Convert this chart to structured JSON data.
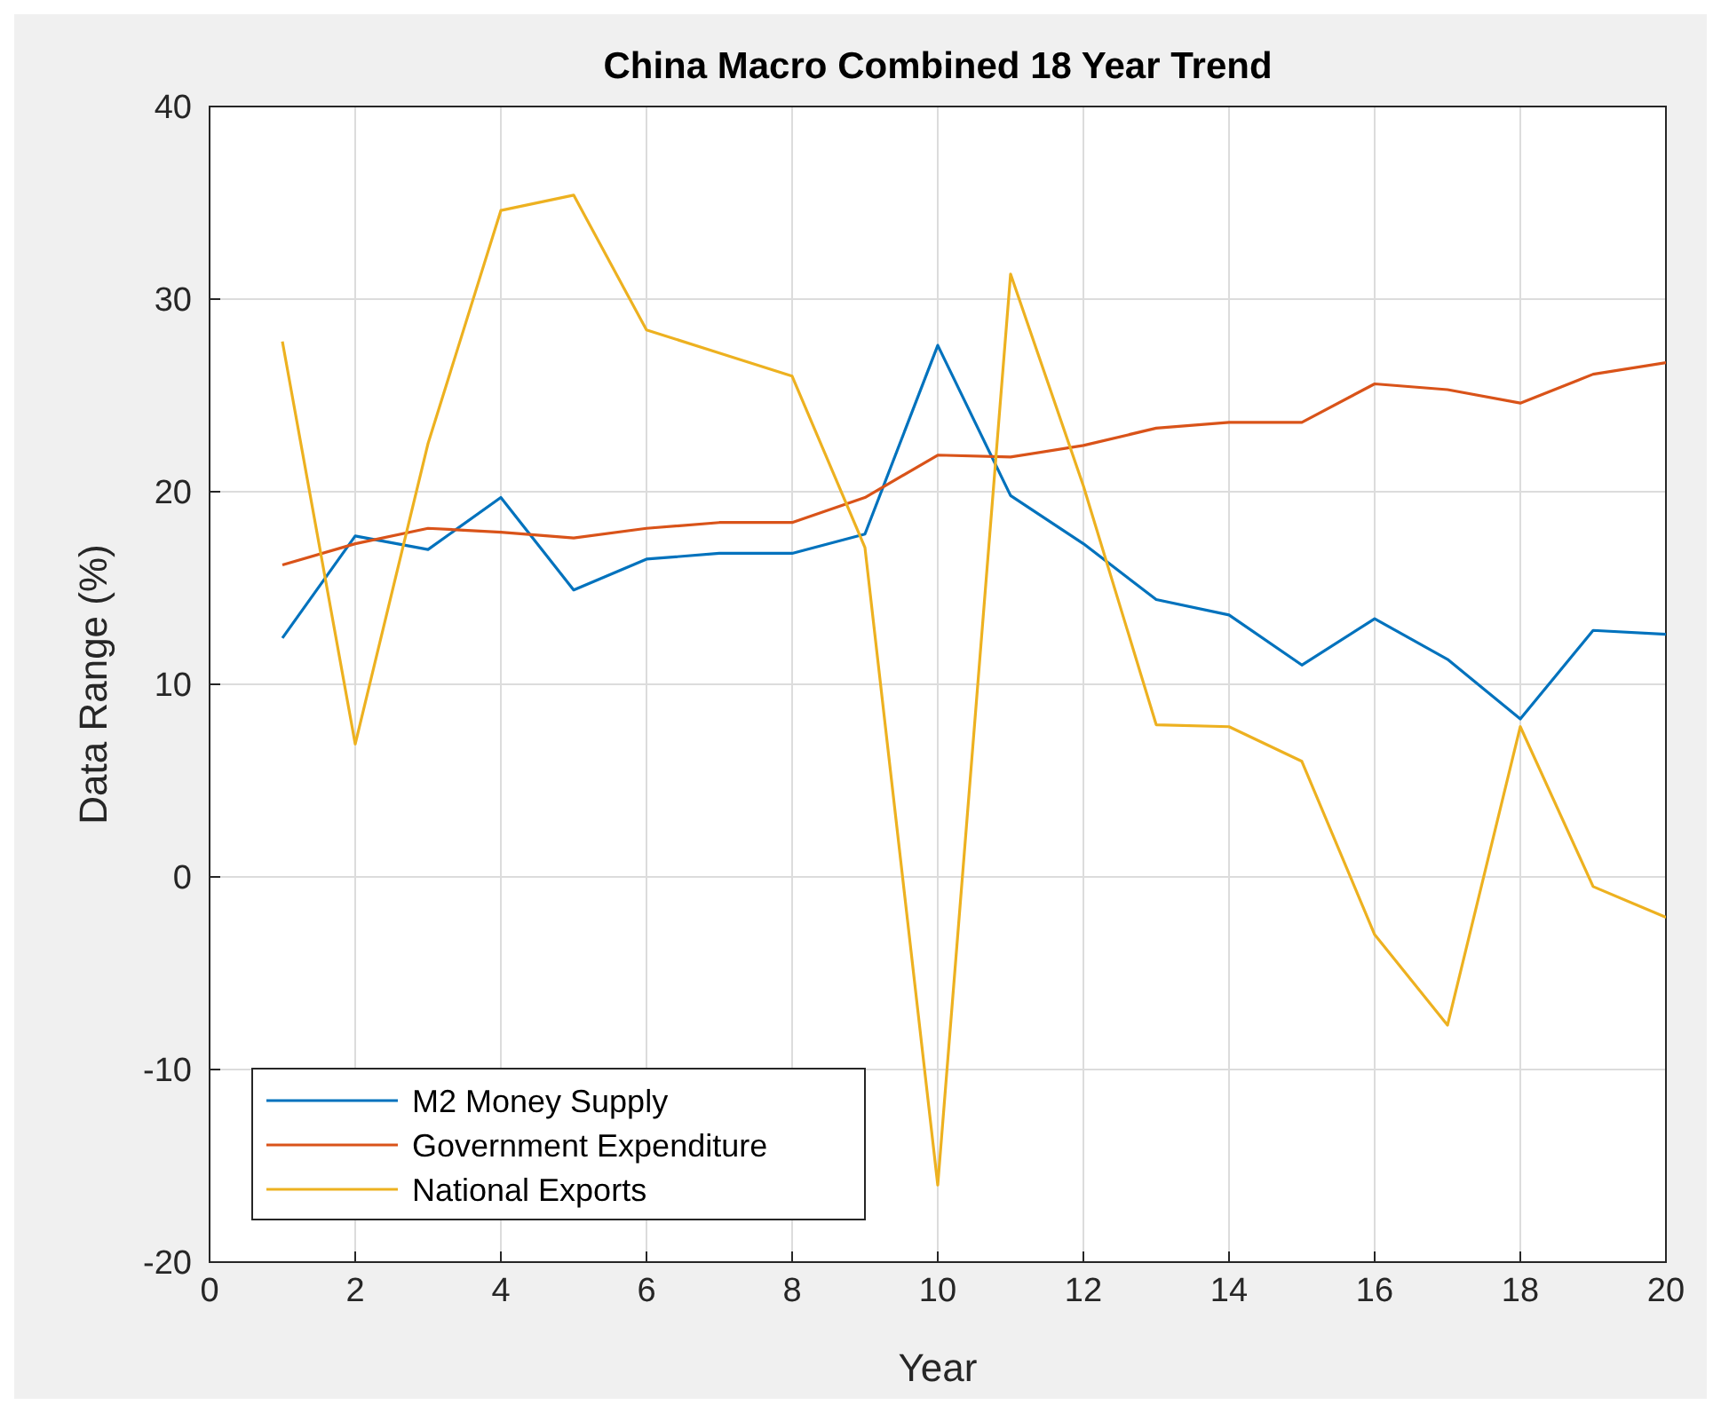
{
  "chart_data": {
    "type": "line",
    "title": "China Macro Combined 18 Year Trend",
    "xlabel": "Year",
    "ylabel": "Data Range (%)",
    "x": [
      1,
      2,
      3,
      4,
      5,
      6,
      7,
      8,
      9,
      10,
      11,
      12,
      13,
      14,
      15,
      16,
      17,
      18,
      19,
      20
    ],
    "series": [
      {
        "name": "M2 Money Supply",
        "color": "#0072bd",
        "values": [
          12.4,
          17.7,
          17.0,
          19.7,
          14.9,
          16.5,
          16.8,
          16.8,
          17.8,
          27.6,
          19.8,
          17.3,
          14.4,
          13.6,
          11.0,
          13.4,
          11.3,
          8.2,
          12.8,
          12.6
        ]
      },
      {
        "name": "Government Expenditure",
        "color": "#d95319",
        "values": [
          16.2,
          17.3,
          18.1,
          17.9,
          17.6,
          18.1,
          18.4,
          18.4,
          19.7,
          21.9,
          21.8,
          22.4,
          23.3,
          23.6,
          23.6,
          25.6,
          25.3,
          24.6,
          26.1,
          26.7
        ]
      },
      {
        "name": "National Exports",
        "color": "#edb120",
        "values": [
          27.8,
          6.9,
          22.5,
          34.6,
          35.4,
          28.4,
          27.2,
          26.0,
          17.1,
          -16.0,
          31.3,
          20.3,
          7.9,
          7.8,
          6.0,
          -3.0,
          -7.7,
          7.8,
          -0.5,
          -2.1
        ]
      }
    ],
    "xlim": [
      0,
      20
    ],
    "xticks": [
      0,
      2,
      4,
      6,
      8,
      10,
      12,
      14,
      16,
      18,
      20
    ],
    "ylim": [
      -20,
      40
    ],
    "yticks": [
      -20,
      -10,
      0,
      10,
      20,
      30,
      40
    ],
    "grid": true,
    "legend": "bottom left",
    "marker": "none",
    "line_style": "solid"
  }
}
